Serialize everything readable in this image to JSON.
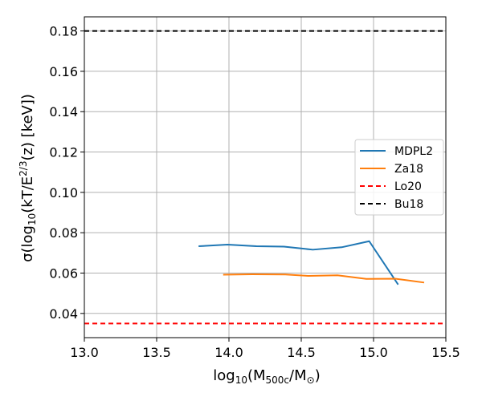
{
  "chart_data": {
    "type": "line",
    "xlabel_parts": {
      "pre": "log",
      "sub1": "10",
      "mid": "(M",
      "sub2": "500c",
      "mid2": "/M",
      "sub3": "⊙",
      "post": ")"
    },
    "ylabel_parts": {
      "pre": "σ(log",
      "sub1": "10",
      "mid": "(kT/E",
      "sup": "2/3",
      "post": "(z) [keV])"
    },
    "xlim": [
      13.0,
      15.5
    ],
    "ylim": [
      0.028,
      0.187
    ],
    "xticks": [
      13.0,
      13.5,
      14.0,
      14.5,
      15.0,
      15.5
    ],
    "xtick_labels": [
      "13.0",
      "13.5",
      "14.0",
      "14.5",
      "15.0",
      "15.5"
    ],
    "yticks": [
      0.04,
      0.06,
      0.08,
      0.1,
      0.12,
      0.14,
      0.16,
      0.18
    ],
    "ytick_labels": [
      "0.04",
      "0.06",
      "0.08",
      "0.10",
      "0.12",
      "0.14",
      "0.16",
      "0.18"
    ],
    "grid": true,
    "legend_position": "right",
    "series": [
      {
        "name": "MDPL2",
        "style": "solid",
        "color": "#1f77b4",
        "x": [
          13.79,
          13.99,
          14.19,
          14.38,
          14.58,
          14.78,
          14.97,
          15.17
        ],
        "y": [
          0.0733,
          0.0741,
          0.0733,
          0.0731,
          0.0716,
          0.0728,
          0.0758,
          0.0543
        ]
      },
      {
        "name": "Za18",
        "style": "solid",
        "color": "#ff7f0e",
        "x": [
          13.96,
          14.16,
          14.39,
          14.55,
          14.75,
          14.95,
          15.15,
          15.35
        ],
        "y": [
          0.0592,
          0.0594,
          0.0593,
          0.0586,
          0.0589,
          0.0571,
          0.0572,
          0.0553
        ]
      },
      {
        "name": "Lo20",
        "style": "dashed",
        "color": "#ff0000",
        "hline": 0.035
      },
      {
        "name": "Bu18",
        "style": "dashed",
        "color": "#000000",
        "hline": 0.18
      }
    ]
  }
}
